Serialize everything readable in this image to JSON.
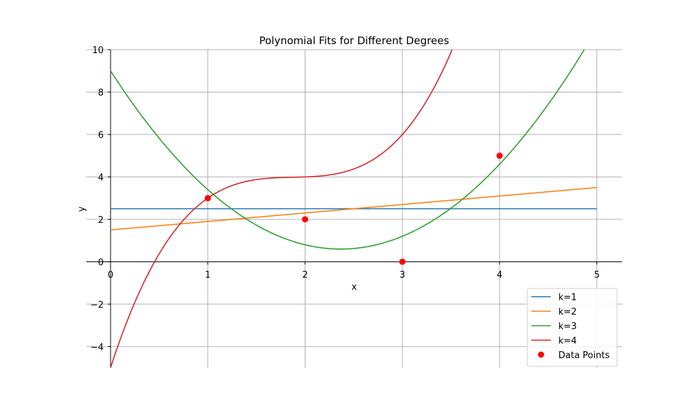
{
  "chart_data": {
    "type": "line",
    "title": "Polynomial Fits for Different Degrees",
    "xlabel": "x",
    "ylabel": "y",
    "xlim": [
      0,
      5.25
    ],
    "ylim": [
      -5,
      10
    ],
    "xticks": [
      0,
      1,
      2,
      3,
      4,
      5
    ],
    "xtick_labels": [
      "0",
      "1",
      "2",
      "3",
      "4",
      "5"
    ],
    "yticks": [
      -4,
      -2,
      0,
      2,
      4,
      6,
      8,
      10
    ],
    "ytick_labels": [
      "−4",
      "−2",
      "0",
      "2",
      "4",
      "6",
      "8",
      "10"
    ],
    "grid": true,
    "legend_position": "lower-right",
    "x_domain": [
      0,
      5
    ],
    "series": [
      {
        "name": "k=1",
        "color": "#1f77b4",
        "coefficients": [
          2.5
        ]
      },
      {
        "name": "k=2",
        "color": "#ff7f0e",
        "coefficients": [
          1.5,
          0.4
        ]
      },
      {
        "name": "k=3",
        "color": "#2ca02c",
        "coefficients": [
          9.0,
          -7.1,
          1.5
        ]
      },
      {
        "name": "k=4",
        "color": "#d62728",
        "coefficients": [
          -5.0,
          14.1667,
          -7.5,
          1.3333
        ]
      }
    ],
    "scatter": {
      "name": "Data Points",
      "color": "#ff0000",
      "x": [
        1,
        2,
        3,
        4
      ],
      "y": [
        3,
        2,
        0,
        5
      ]
    }
  }
}
